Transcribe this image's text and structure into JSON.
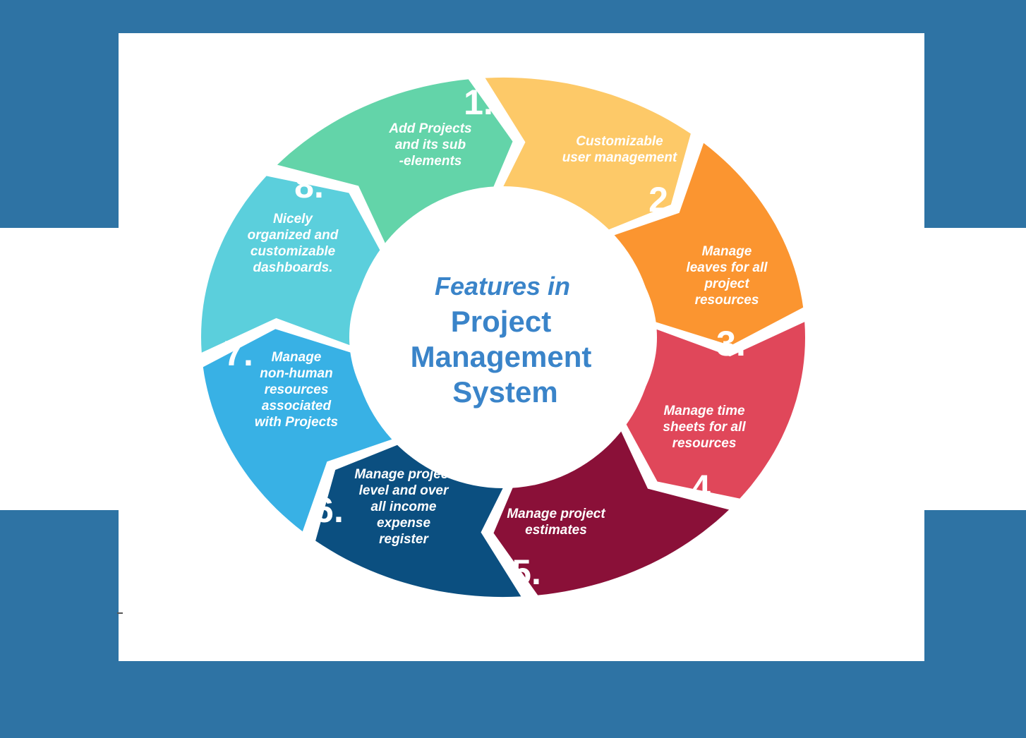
{
  "diagram": {
    "title_lines": [
      "Features in",
      "Project",
      "Management",
      "System"
    ],
    "segments": [
      {
        "number": "1.",
        "lines": [
          "Add Projects",
          "and its sub",
          "-elements"
        ],
        "color": "#fdc968"
      },
      {
        "number": "2.",
        "lines": [
          "Customizable",
          "user management"
        ],
        "color": "#fb9530"
      },
      {
        "number": "3.",
        "lines": [
          "Manage",
          "leaves for all",
          "project",
          "resources"
        ],
        "color": "#e0475a"
      },
      {
        "number": "4.",
        "lines": [
          "Manage time",
          "sheets for all",
          "resources"
        ],
        "color": "#8a1038"
      },
      {
        "number": "5.",
        "lines": [
          "Manage project",
          "estimates"
        ],
        "color": "#0b4f80"
      },
      {
        "number": "6.",
        "lines": [
          "Manage project",
          "level and over",
          "all income",
          "expense",
          "register"
        ],
        "color": "#38b1e5"
      },
      {
        "number": "7.",
        "lines": [
          "Manage",
          "non-human",
          "resources",
          "associated",
          "with Projects"
        ],
        "color": "#5bcfdc"
      },
      {
        "number": "8.",
        "lines": [
          "Nicely",
          "organized and",
          "customizable",
          "dashboards."
        ],
        "color": "#63d4a9"
      }
    ],
    "background_color": "#2e73a4",
    "title_color": "#3a84c9"
  }
}
